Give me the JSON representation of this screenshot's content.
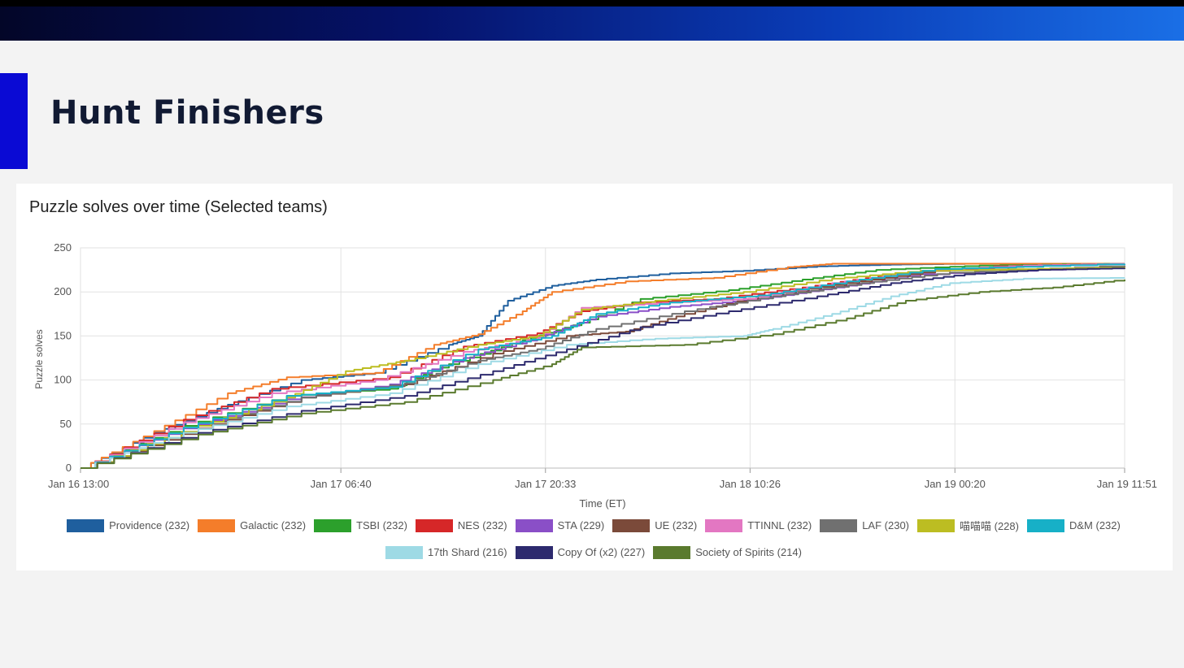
{
  "slide": {
    "title": "Hunt Finishers"
  },
  "chart_data": {
    "type": "line",
    "title": "Puzzle solves over time (Selected teams)",
    "xlabel": "Time (ET)",
    "ylabel": "Puzzle solves",
    "ylim": [
      0,
      250
    ],
    "yticks": [
      0,
      50,
      100,
      150,
      200,
      250
    ],
    "xlim": [
      "Jan 16 13:00",
      "Jan 19 11:51"
    ],
    "xticks": [
      "Jan 16 13:00",
      "Jan 17 06:40",
      "Jan 17 20:33",
      "Jan 18 10:26",
      "Jan 19 00:20",
      "Jan 19 11:51"
    ],
    "grid": true,
    "legend_position": "bottom",
    "series": [
      {
        "name": "Providence (232)",
        "color": "#1f5f9e",
        "x": [
          "Jan 16 13:00",
          "Jan 16 18:00",
          "Jan 16 23:00",
          "Jan 17 04:00",
          "Jan 17 09:00",
          "Jan 17 14:00",
          "Jan 17 16:00",
          "Jan 17 18:00",
          "Jan 17 21:00",
          "Jan 18 00:00",
          "Jan 18 05:00",
          "Jan 18 10:00",
          "Jan 18 15:00",
          "Jan 18 20:00",
          "Jan 19 01:00",
          "Jan 19 06:00",
          "Jan 19 11:51"
        ],
        "y": [
          0,
          40,
          72,
          100,
          108,
          140,
          150,
          190,
          207,
          214,
          221,
          224,
          229,
          231,
          232,
          232,
          232
        ]
      },
      {
        "name": "Galactic (232)",
        "color": "#f47d2a",
        "x": [
          "Jan 16 13:00",
          "Jan 16 18:00",
          "Jan 16 23:00",
          "Jan 17 03:00",
          "Jan 17 09:00",
          "Jan 17 13:00",
          "Jan 17 16:00",
          "Jan 17 19:00",
          "Jan 17 21:00",
          "Jan 18 02:00",
          "Jan 18 08:00",
          "Jan 18 13:00",
          "Jan 18 16:00",
          "Jan 19 11:51"
        ],
        "y": [
          0,
          42,
          85,
          103,
          108,
          140,
          152,
          178,
          200,
          212,
          216,
          228,
          232,
          232
        ]
      },
      {
        "name": "TSBI (232)",
        "color": "#2ca02c",
        "x": [
          "Jan 16 13:00",
          "Jan 16 20:00",
          "Jan 17 03:00",
          "Jan 17 10:00",
          "Jan 17 14:00",
          "Jan 17 19:00",
          "Jan 17 23:00",
          "Jan 18 03:00",
          "Jan 18 09:00",
          "Jan 18 14:00",
          "Jan 18 19:00",
          "Jan 19 02:00",
          "Jan 19 11:51"
        ],
        "y": [
          0,
          48,
          82,
          90,
          118,
          145,
          165,
          192,
          202,
          214,
          225,
          230,
          232
        ]
      },
      {
        "name": "NES (232)",
        "color": "#d62728",
        "x": [
          "Jan 16 13:00",
          "Jan 16 20:00",
          "Jan 17 02:00",
          "Jan 17 10:00",
          "Jan 17 15:00",
          "Jan 17 20:00",
          "Jan 17 23:00",
          "Jan 18 03:00",
          "Jan 18 08:00",
          "Jan 18 14:00",
          "Jan 18 20:00",
          "Jan 19 03:00",
          "Jan 19 11:51"
        ],
        "y": [
          0,
          55,
          90,
          103,
          138,
          153,
          178,
          188,
          192,
          205,
          220,
          229,
          232
        ]
      },
      {
        "name": "STA (229)",
        "color": "#8a4fc7",
        "x": [
          "Jan 16 13:00",
          "Jan 16 20:00",
          "Jan 17 03:00",
          "Jan 17 10:00",
          "Jan 17 15:00",
          "Jan 17 20:00",
          "Jan 18 00:00",
          "Jan 18 05:00",
          "Jan 18 10:00",
          "Jan 18 16:00",
          "Jan 18 22:00",
          "Jan 19 11:51"
        ],
        "y": [
          0,
          45,
          78,
          95,
          125,
          148,
          172,
          183,
          190,
          205,
          220,
          229
        ]
      },
      {
        "name": "UE (232)",
        "color": "#7b4a3a",
        "x": [
          "Jan 16 13:00",
          "Jan 16 21:00",
          "Jan 17 04:00",
          "Jan 17 11:00",
          "Jan 17 17:00",
          "Jan 17 22:00",
          "Jan 18 02:00",
          "Jan 18 06:00",
          "Jan 18 11:00",
          "Jan 18 17:00",
          "Jan 18 23:00",
          "Jan 19 06:00",
          "Jan 19 11:51"
        ],
        "y": [
          0,
          45,
          80,
          95,
          130,
          150,
          155,
          175,
          195,
          210,
          224,
          230,
          232
        ]
      },
      {
        "name": "TTINNL (232)",
        "color": "#e377c2",
        "x": [
          "Jan 16 13:00",
          "Jan 16 20:00",
          "Jan 17 02:00",
          "Jan 17 09:00",
          "Jan 17 15:00",
          "Jan 17 20:00",
          "Jan 17 23:00",
          "Jan 18 05:00",
          "Jan 18 10:00",
          "Jan 18 16:00",
          "Jan 18 22:00",
          "Jan 19 05:00",
          "Jan 19 11:51"
        ],
        "y": [
          0,
          52,
          85,
          100,
          132,
          148,
          182,
          188,
          192,
          210,
          224,
          230,
          232
        ]
      },
      {
        "name": "LAF (230)",
        "color": "#707070",
        "x": [
          "Jan 16 13:00",
          "Jan 16 21:00",
          "Jan 17 04:00",
          "Jan 17 11:00",
          "Jan 17 16:00",
          "Jan 17 20:00",
          "Jan 18 00:00",
          "Jan 18 06:00",
          "Jan 18 12:00",
          "Jan 18 18:00",
          "Jan 19 00:00",
          "Jan 19 11:51"
        ],
        "y": [
          0,
          48,
          80,
          96,
          122,
          135,
          158,
          178,
          195,
          210,
          222,
          230
        ]
      },
      {
        "name": "喵喵喵 (228)",
        "color": "#bcbd22",
        "x": [
          "Jan 16 13:00",
          "Jan 16 21:00",
          "Jan 17 03:00",
          "Jan 17 07:00",
          "Jan 17 11:00",
          "Jan 17 16:00",
          "Jan 17 20:00",
          "Jan 17 23:00",
          "Jan 18 04:00",
          "Jan 18 10:00",
          "Jan 18 16:00",
          "Jan 18 22:00",
          "Jan 19 11:51"
        ],
        "y": [
          0,
          48,
          80,
          110,
          122,
          140,
          150,
          180,
          190,
          200,
          215,
          224,
          228
        ]
      },
      {
        "name": "D&M (232)",
        "color": "#17b0c7",
        "x": [
          "Jan 16 13:00",
          "Jan 16 20:00",
          "Jan 17 03:00",
          "Jan 17 10:00",
          "Jan 17 16:00",
          "Jan 17 21:00",
          "Jan 18 00:00",
          "Jan 18 05:00",
          "Jan 18 11:00",
          "Jan 18 17:00",
          "Jan 18 23:00",
          "Jan 19 11:51"
        ],
        "y": [
          0,
          46,
          82,
          92,
          135,
          150,
          175,
          188,
          196,
          212,
          226,
          232
        ]
      },
      {
        "name": "17th Shard (216)",
        "color": "#9edae5",
        "x": [
          "Jan 16 13:00",
          "Jan 16 20:00",
          "Jan 17 03:00",
          "Jan 17 10:00",
          "Jan 17 16:00",
          "Jan 17 22:00",
          "Jan 18 04:00",
          "Jan 18 10:00",
          "Jan 18 12:00",
          "Jan 18 16:00",
          "Jan 18 20:00",
          "Jan 19 00:00",
          "Jan 19 05:00",
          "Jan 19 11:51"
        ],
        "y": [
          0,
          40,
          70,
          85,
          118,
          140,
          147,
          150,
          158,
          175,
          195,
          210,
          215,
          216
        ]
      },
      {
        "name": "Copy Of (x2) (227)",
        "color": "#2d2a6e",
        "x": [
          "Jan 16 13:00",
          "Jan 16 21:00",
          "Jan 17 04:00",
          "Jan 17 11:00",
          "Jan 17 17:00",
          "Jan 17 22:00",
          "Jan 18 03:00",
          "Jan 18 09:00",
          "Jan 18 15:00",
          "Jan 18 20:00",
          "Jan 19 01:00",
          "Jan 19 06:00",
          "Jan 19 11:51"
        ],
        "y": [
          0,
          40,
          65,
          82,
          110,
          135,
          160,
          178,
          195,
          210,
          220,
          225,
          227
        ]
      },
      {
        "name": "Society of Spirits (214)",
        "color": "#5a7a2e",
        "x": [
          "Jan 16 13:00",
          "Jan 16 21:00",
          "Jan 17 04:00",
          "Jan 17 11:00",
          "Jan 17 17:00",
          "Jan 17 21:00",
          "Jan 17 23:00",
          "Jan 18 06:00",
          "Jan 18 12:00",
          "Jan 18 17:00",
          "Jan 18 21:00",
          "Jan 19 02:00",
          "Jan 19 07:00",
          "Jan 19 11:51"
        ],
        "y": [
          0,
          38,
          62,
          75,
          100,
          118,
          137,
          140,
          152,
          170,
          190,
          200,
          205,
          214
        ]
      }
    ]
  }
}
